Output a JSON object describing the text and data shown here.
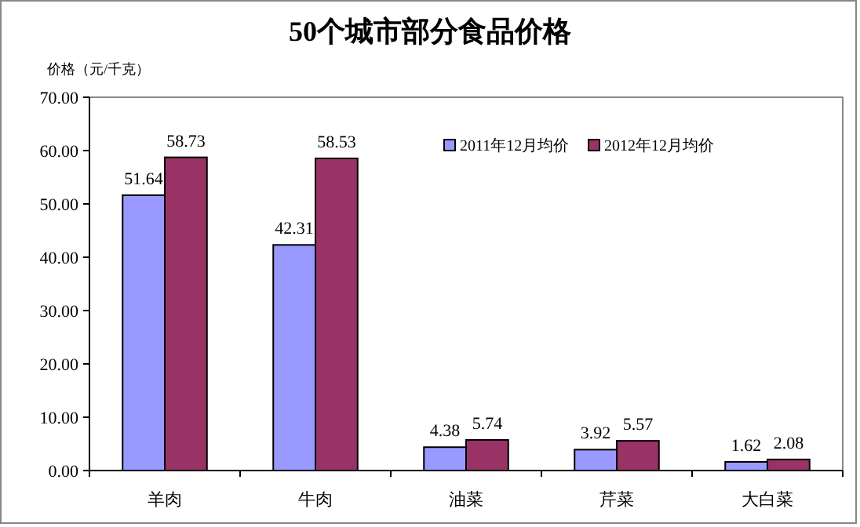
{
  "chart_data": {
    "type": "bar",
    "title": "50个城市部分食品价格",
    "ylabel": "价格（元/千克）",
    "categories": [
      "羊肉",
      "牛肉",
      "油菜",
      "芹菜",
      "大白菜"
    ],
    "series": [
      {
        "name": "2011年12月均价",
        "color": "#9999ff",
        "values": [
          51.64,
          42.31,
          4.38,
          3.92,
          1.62
        ]
      },
      {
        "name": "2012年12月均价",
        "color": "#993366",
        "values": [
          58.73,
          58.53,
          5.74,
          5.57,
          2.08
        ]
      }
    ],
    "ylim": [
      0,
      70
    ],
    "yticks": [
      {
        "value": 0,
        "label": "0.00"
      },
      {
        "value": 10,
        "label": "10.00"
      },
      {
        "value": 20,
        "label": "20.00"
      },
      {
        "value": 30,
        "label": "30.00"
      },
      {
        "value": 40,
        "label": "40.00"
      },
      {
        "value": 50,
        "label": "50.00"
      },
      {
        "value": 60,
        "label": "60.00"
      },
      {
        "value": 70,
        "label": "70.00"
      }
    ],
    "data_labels": true,
    "grid": false,
    "legend": "top right"
  }
}
